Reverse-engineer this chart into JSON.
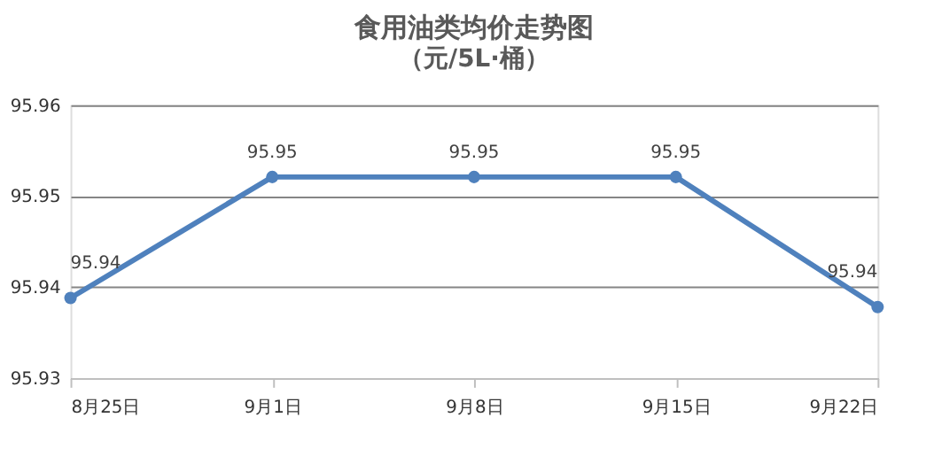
{
  "chart_data": {
    "type": "line",
    "title": "食用油类均价走势图",
    "subtitle": "（元/5L·桶）",
    "categories": [
      "8月25日",
      "9月1日",
      "9月8日",
      "9月15日",
      "9月22日"
    ],
    "series": [
      {
        "color": "#4f81bd",
        "values": [
          95.9388,
          95.9521,
          95.9521,
          95.9521,
          95.9378
        ],
        "value_labels": [
          "95.94",
          "95.95",
          "95.95",
          "95.95",
          "95.94"
        ]
      }
    ],
    "ylim": [
      95.93,
      95.96
    ],
    "yticks": [
      95.93,
      95.94,
      95.95,
      95.96
    ],
    "grid": "y",
    "marker": "circle",
    "line_style": "solid"
  }
}
